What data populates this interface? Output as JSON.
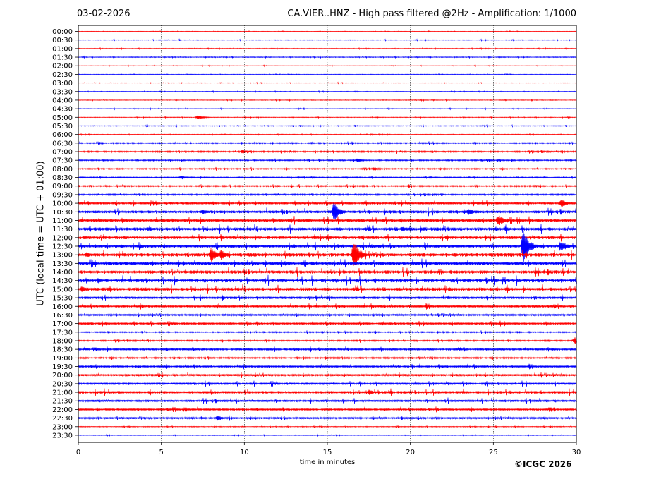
{
  "header": {
    "date": "03-02-2026",
    "title": "CA.VIER..HNZ - High pass filtered @2Hz - Amplification: 1/1000"
  },
  "footer": {
    "copyright": "©ICGC 2026"
  },
  "chart_data": {
    "type": "line",
    "title": "CA.VIER..HNZ - High pass filtered @2Hz - Amplification: 1/1000",
    "xlabel": "time in minutes",
    "ylabel": "UTC (local time = UTC + 01:00)",
    "xlim": [
      0,
      30
    ],
    "xticks": [
      0,
      5,
      10,
      15,
      20,
      25,
      30
    ],
    "vertical_gridlines_minutes": [
      5,
      10,
      15,
      20,
      25
    ],
    "grid": true,
    "trace_colors": [
      "#ff0000",
      "#0000ff"
    ],
    "rows": [
      "00:00",
      "00:30",
      "01:00",
      "01:30",
      "02:00",
      "02:30",
      "03:00",
      "03:30",
      "04:00",
      "04:30",
      "05:00",
      "05:30",
      "06:00",
      "06:30",
      "07:00",
      "07:30",
      "08:00",
      "08:30",
      "09:00",
      "09:30",
      "10:00",
      "10:30",
      "11:00",
      "11:30",
      "12:00",
      "12:30",
      "13:00",
      "13:30",
      "14:00",
      "14:30",
      "15:00",
      "15:30",
      "16:00",
      "16:30",
      "17:00",
      "17:30",
      "18:00",
      "18:30",
      "19:00",
      "19:30",
      "20:00",
      "20:30",
      "21:00",
      "21:30",
      "22:00",
      "22:30",
      "23:00",
      "23:30"
    ],
    "noise_level": [
      0.3,
      0.4,
      0.5,
      0.5,
      0.3,
      0.3,
      0.3,
      0.4,
      0.4,
      0.4,
      0.4,
      0.5,
      0.5,
      0.8,
      1.0,
      0.8,
      0.8,
      0.8,
      0.9,
      1.0,
      1.5,
      2.0,
      2.0,
      2.3,
      2.2,
      2.0,
      2.5,
      2.2,
      2.3,
      2.5,
      2.3,
      1.8,
      1.5,
      1.3,
      1.3,
      0.8,
      0.9,
      1.3,
      1.0,
      1.3,
      1.5,
      1.5,
      1.8,
      1.5,
      1.3,
      1.3,
      0.5,
      0.4
    ],
    "events": [
      {
        "row": "05:00",
        "minute": 7.2,
        "amplitude": 3
      },
      {
        "row": "07:00",
        "minute": 9.9,
        "amplitude": 3
      },
      {
        "row": "07:30",
        "minute": 16.8,
        "amplitude": 3
      },
      {
        "row": "08:00",
        "minute": 17.8,
        "amplitude": 3
      },
      {
        "row": "08:30",
        "minute": 6.2,
        "amplitude": 3
      },
      {
        "row": "10:00",
        "minute": 29.1,
        "amplitude": 6
      },
      {
        "row": "10:30",
        "minute": 15.4,
        "amplitude": 14
      },
      {
        "row": "10:30",
        "minute": 23.5,
        "amplitude": 5
      },
      {
        "row": "10:30",
        "minute": 7.5,
        "amplitude": 4
      },
      {
        "row": "11:00",
        "minute": 25.3,
        "amplitude": 8
      },
      {
        "row": "11:30",
        "minute": 19.5,
        "amplitude": 4
      },
      {
        "row": "11:30",
        "minute": 4.2,
        "amplitude": 4
      },
      {
        "row": "12:30",
        "minute": 26.8,
        "amplitude": 24
      },
      {
        "row": "12:30",
        "minute": 29.1,
        "amplitude": 8
      },
      {
        "row": "13:00",
        "minute": 16.6,
        "amplitude": 22
      },
      {
        "row": "13:00",
        "minute": 8.0,
        "amplitude": 10
      },
      {
        "row": "13:00",
        "minute": 8.6,
        "amplitude": 8
      },
      {
        "row": "13:00",
        "minute": 0.5,
        "amplitude": 4
      },
      {
        "row": "14:30",
        "minute": 1.2,
        "amplitude": 4
      },
      {
        "row": "15:00",
        "minute": 0.2,
        "amplitude": 4
      },
      {
        "row": "18:00",
        "minute": 29.9,
        "amplitude": 6
      },
      {
        "row": "21:00",
        "minute": 17.5,
        "amplitude": 4
      },
      {
        "row": "22:30",
        "minute": 8.4,
        "amplitude": 4
      }
    ]
  }
}
